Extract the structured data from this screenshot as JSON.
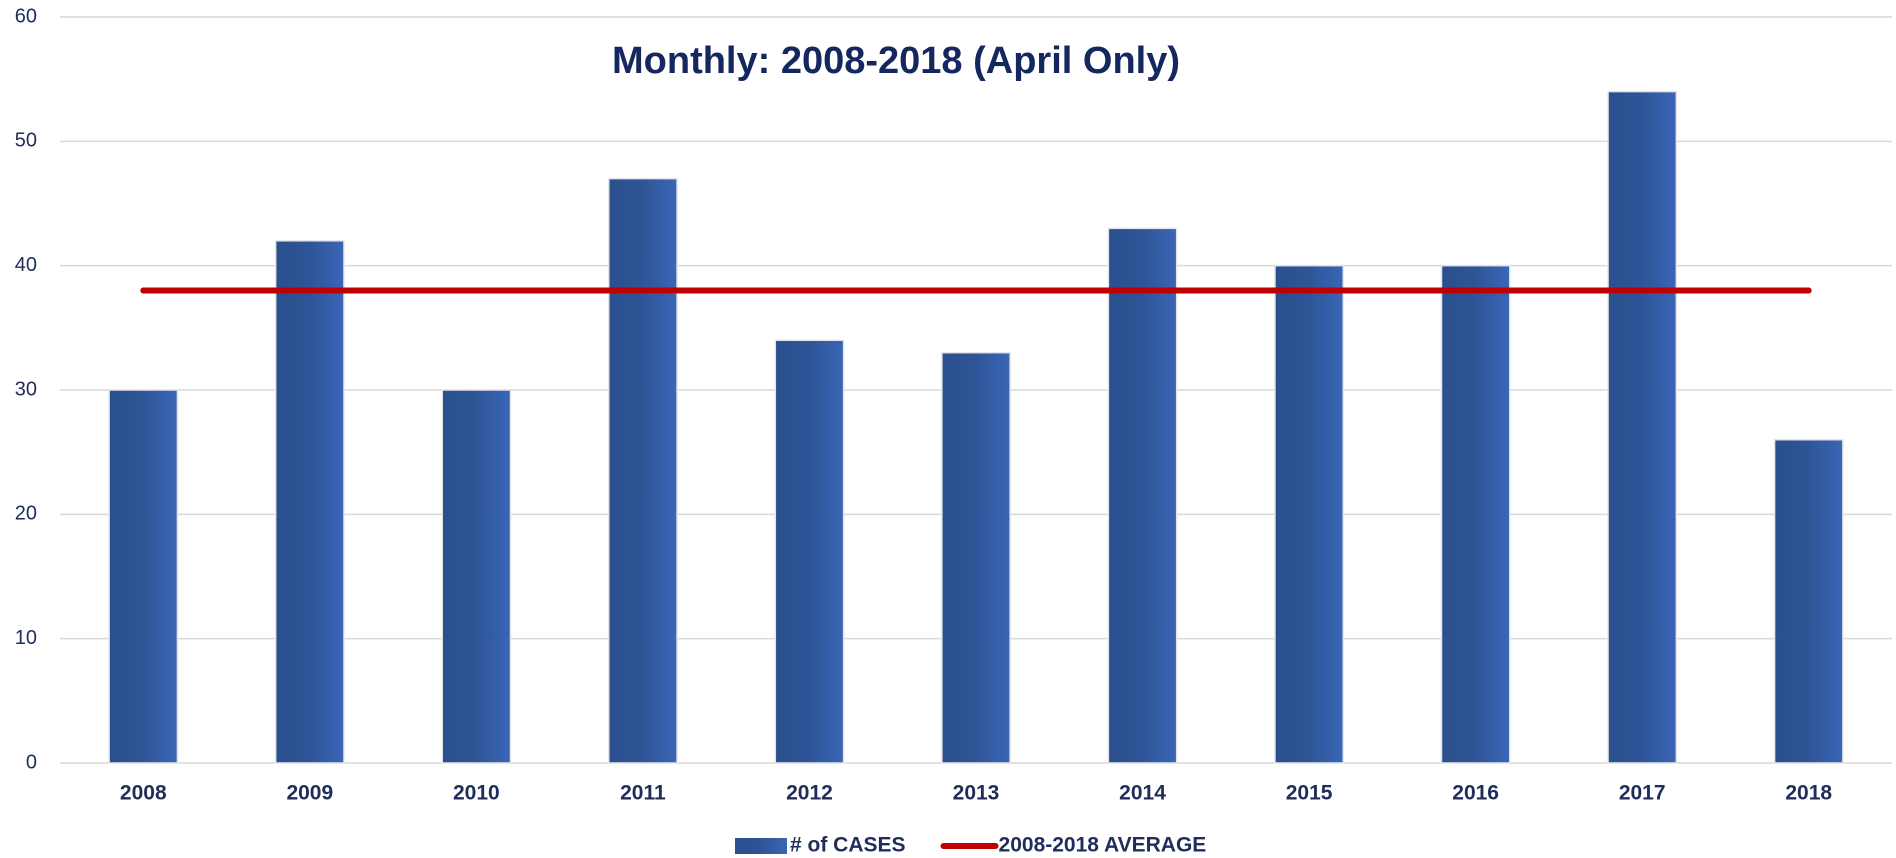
{
  "chart_data": {
    "type": "bar",
    "title": "Monthly: 2008-2018 (April Only)",
    "categories": [
      "2008",
      "2009",
      "2010",
      "2011",
      "2012",
      "2013",
      "2014",
      "2015",
      "2016",
      "2017",
      "2018"
    ],
    "series": [
      {
        "name": "# of CASES",
        "type": "bar",
        "color": "#2f5597",
        "values": [
          30,
          42,
          30,
          47,
          34,
          33,
          43,
          40,
          40,
          54,
          26
        ]
      },
      {
        "name": "2008-2018 AVERAGE",
        "type": "line",
        "color": "#c00000",
        "values": [
          38,
          38,
          38,
          38,
          38,
          38,
          38,
          38,
          38,
          38,
          38
        ]
      }
    ],
    "ylim": [
      0,
      60
    ],
    "yticks": [
      0,
      10,
      20,
      30,
      40,
      50,
      60
    ],
    "grid": true,
    "legend": "bottom"
  }
}
